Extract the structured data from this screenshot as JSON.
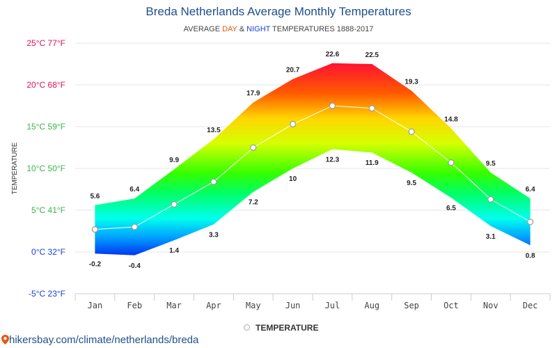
{
  "chart_data": {
    "type": "area",
    "title": "Breda Netherlands Average Monthly Temperatures",
    "subtitle": {
      "prefix": "AVERAGE ",
      "day": "DAY",
      "amp": " & ",
      "night": "NIGHT",
      "suffix": " TEMPERATURES 1888-2017"
    },
    "ylabel": "TEMPERATURE",
    "categories": [
      "Jan",
      "Feb",
      "Mar",
      "Apr",
      "May",
      "Jun",
      "Jul",
      "Aug",
      "Sep",
      "Oct",
      "Nov",
      "Dec"
    ],
    "yticks": [
      {
        "value": 25,
        "label": "25°C 77°F",
        "color": "#e0105a"
      },
      {
        "value": 20,
        "label": "20°C 68°F",
        "color": "#e0105a"
      },
      {
        "value": 15,
        "label": "15°C 59°F",
        "color": "#39b54a"
      },
      {
        "value": 10,
        "label": "10°C 50°F",
        "color": "#39b54a"
      },
      {
        "value": 5,
        "label": "5°C 41°F",
        "color": "#39b54a"
      },
      {
        "value": 0,
        "label": "0°C 32°F",
        "color": "#1a3fd6"
      },
      {
        "value": -5,
        "label": "-5°C 23°F",
        "color": "#1a3fd6"
      }
    ],
    "ylim": [
      -5,
      25
    ],
    "grid": true,
    "series": [
      {
        "name": "DAY",
        "values": [
          5.6,
          6.4,
          9.9,
          13.5,
          17.9,
          20.7,
          22.6,
          22.5,
          19.3,
          14.8,
          9.5,
          6.4
        ]
      },
      {
        "name": "NIGHT",
        "values": [
          -0.2,
          -0.4,
          1.4,
          3.3,
          7.2,
          10,
          12.3,
          11.9,
          9.5,
          6.5,
          3.1,
          0.8
        ]
      },
      {
        "name": "TEMPERATURE",
        "values": [
          2.7,
          3.0,
          5.7,
          8.4,
          12.5,
          15.3,
          17.5,
          17.2,
          14.4,
          10.7,
          6.3,
          3.6
        ]
      }
    ],
    "legend": {
      "label": "TEMPERATURE",
      "placement": "bottom-center"
    }
  },
  "footer": {
    "text": "hikersbay.com/climate/netherlands/breda"
  }
}
